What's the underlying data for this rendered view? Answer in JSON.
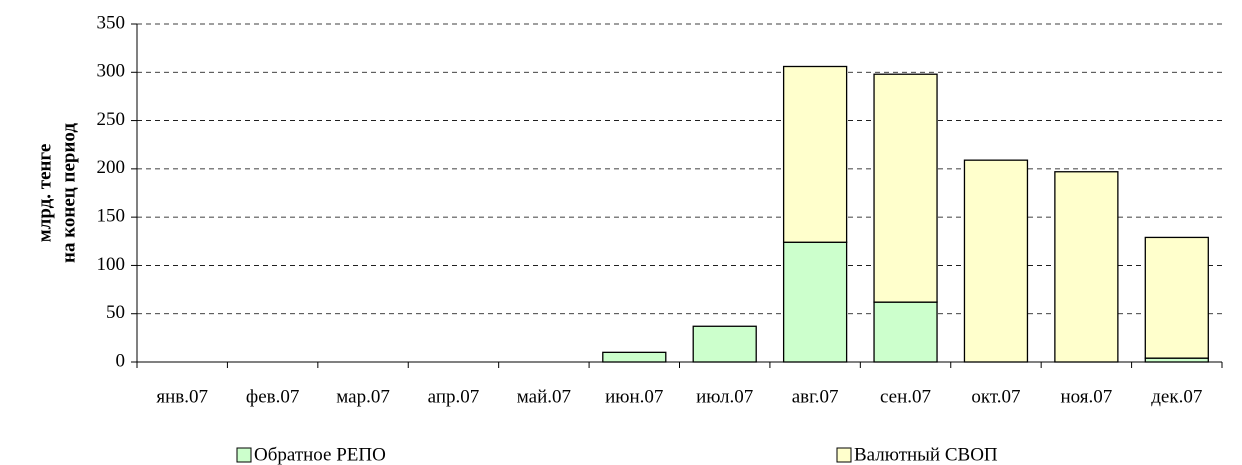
{
  "chart_data": {
    "type": "stacked_bar",
    "ylabel": [
      "млрд. тенге",
      "на конец период"
    ],
    "categories": [
      "янв.07",
      "фев.07",
      "мар.07",
      "апр.07",
      "май.07",
      "июн.07",
      "июл.07",
      "авг.07",
      "сен.07",
      "окт.07",
      "ноя.07",
      "дек.07"
    ],
    "series": [
      {
        "name": "Обратное РЕПО",
        "color": "#ccffcc",
        "values": [
          0,
          0,
          0,
          0,
          0,
          10,
          37,
          124,
          62,
          0,
          0,
          4
        ]
      },
      {
        "name": "Валютный СВОП",
        "color": "#ffffcc",
        "values": [
          0,
          0,
          0,
          0,
          0,
          0,
          0,
          182,
          236,
          209,
          197,
          125
        ]
      }
    ],
    "ylim": [
      0,
      350
    ],
    "yticks": [
      0,
      50,
      100,
      150,
      200,
      250,
      300,
      350
    ],
    "grid": true,
    "legend": "bottom"
  }
}
